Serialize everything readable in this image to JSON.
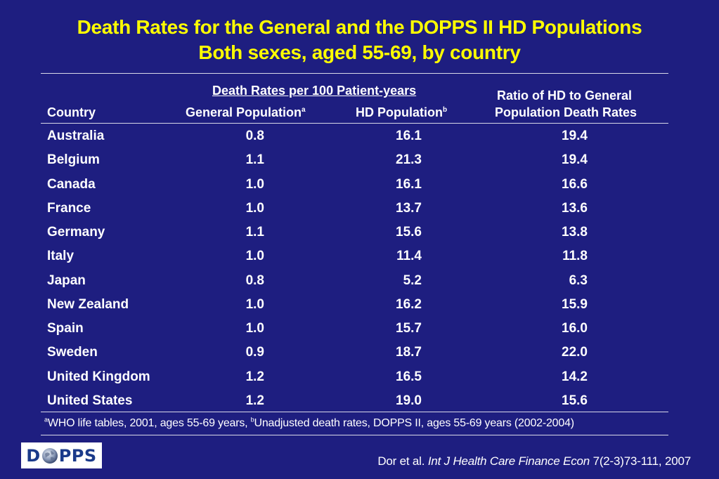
{
  "title": {
    "line1": "Death Rates for the General and the DOPPS II HD Populations",
    "line2": "Both sexes, aged 55-69, by country"
  },
  "table": {
    "group_header": "Death Rates per 100 Patient-years",
    "headers": {
      "country": "Country",
      "general": "General Population",
      "general_sup": "a",
      "hd": "HD Population",
      "hd_sup": "b",
      "ratio_line1": "Ratio of HD to General",
      "ratio_line2": "Population Death Rates"
    },
    "rows": [
      {
        "country": "Australia",
        "general": "0.8",
        "hd": "16.1",
        "ratio": "19.4"
      },
      {
        "country": "Belgium",
        "general": "1.1",
        "hd": "21.3",
        "ratio": "19.4"
      },
      {
        "country": "Canada",
        "general": "1.0",
        "hd": "16.1",
        "ratio": "16.6"
      },
      {
        "country": "France",
        "general": "1.0",
        "hd": "13.7",
        "ratio": "13.6"
      },
      {
        "country": "Germany",
        "general": "1.1",
        "hd": "15.6",
        "ratio": "13.8"
      },
      {
        "country": "Italy",
        "general": "1.0",
        "hd": "11.4",
        "ratio": "11.8"
      },
      {
        "country": "Japan",
        "general": "0.8",
        "hd": "5.2",
        "ratio": "6.3"
      },
      {
        "country": "New Zealand",
        "general": "1.0",
        "hd": "16.2",
        "ratio": "15.9"
      },
      {
        "country": "Spain",
        "general": "1.0",
        "hd": "15.7",
        "ratio": "16.0"
      },
      {
        "country": "Sweden",
        "general": "0.9",
        "hd": "18.7",
        "ratio": "22.0"
      },
      {
        "country": "United Kingdom",
        "general": "1.2",
        "hd": "16.5",
        "ratio": "14.2"
      },
      {
        "country": "United States",
        "general": "1.2",
        "hd": "19.0",
        "ratio": "15.6"
      }
    ]
  },
  "footnote": {
    "sup_a": "a",
    "text_a": "WHO life tables, 2001, ages 55-69 years, ",
    "sup_b": "b",
    "text_b": "Unadjusted death rates, DOPPS II, ages 55-69 years (2002-2004)"
  },
  "logo": {
    "left": "D",
    "right": "PPS"
  },
  "citation": {
    "authors": "Dor et al. ",
    "journal": "Int J Health Care Finance Econ",
    "details": " 7(2-3)73-111, 2007"
  },
  "colors": {
    "background": "#1e1e80",
    "title": "#ffff00",
    "text": "#ffffff"
  }
}
